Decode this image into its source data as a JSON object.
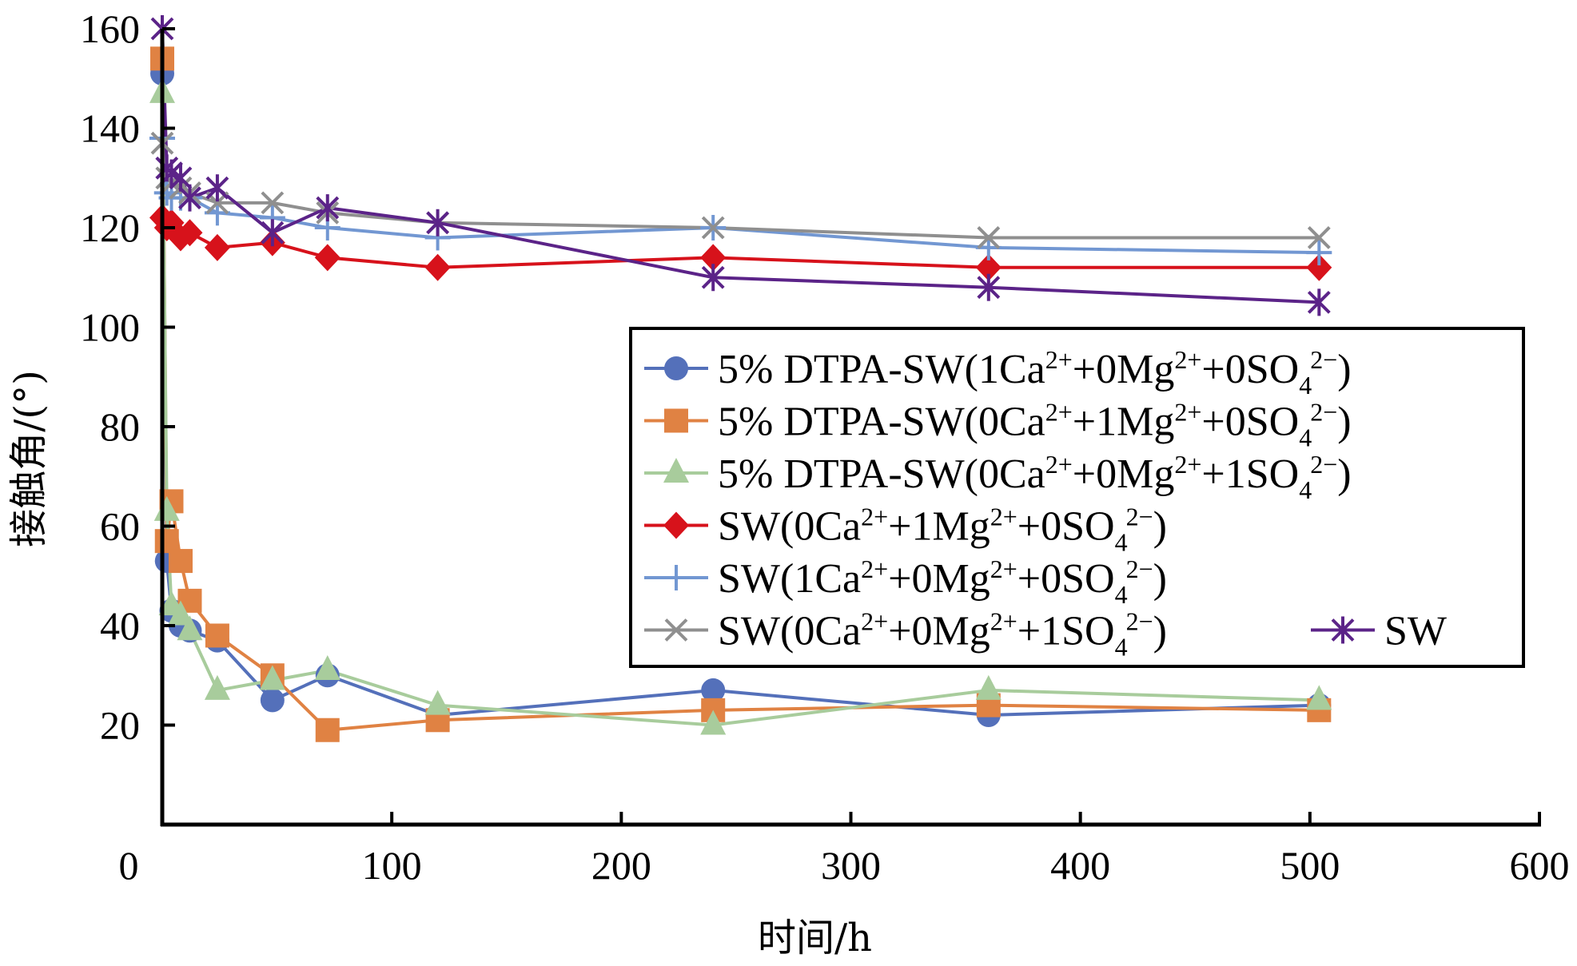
{
  "chart_data": {
    "type": "line",
    "title": "",
    "xlabel": "时间/h",
    "ylabel": "接触角/(°)",
    "xlim": [
      0,
      600
    ],
    "ylim": [
      0,
      160
    ],
    "xticks": [
      0,
      100,
      200,
      300,
      400,
      500,
      600
    ],
    "yticks": [
      20,
      40,
      60,
      80,
      100,
      120,
      140,
      160
    ],
    "grid": false,
    "legend_position": "center-right",
    "x": [
      0,
      2,
      4,
      8,
      12,
      24,
      48,
      72,
      120,
      240,
      360,
      504
    ],
    "series": [
      {
        "name": "5% DTPA-SW(1Ca2++0Mg2++0SO42−)",
        "label_parts": [
          [
            "5% DTPA-SW(1Ca",
            ""
          ],
          [
            "2+",
            "sup"
          ],
          [
            "+0Mg",
            ""
          ],
          [
            "2+",
            "sup"
          ],
          [
            "+0SO",
            ""
          ],
          [
            "4",
            "sub"
          ],
          [
            "2−",
            "sup"
          ],
          [
            ")",
            ""
          ]
        ],
        "marker": "circle",
        "color": "#5470BA",
        "values": [
          151,
          53,
          43,
          40,
          39,
          37,
          25,
          30,
          22,
          27,
          22,
          24
        ]
      },
      {
        "name": "5% DTPA-SW(0Ca2++1Mg2++0SO42−)",
        "label_parts": [
          [
            "5% DTPA-SW(0Ca",
            ""
          ],
          [
            "2+",
            "sup"
          ],
          [
            "+1Mg",
            ""
          ],
          [
            "2+",
            "sup"
          ],
          [
            "+0SO",
            ""
          ],
          [
            "4",
            "sub"
          ],
          [
            "2−",
            "sup"
          ],
          [
            ")",
            ""
          ]
        ],
        "marker": "square",
        "color": "#E08243",
        "values": [
          154,
          57,
          65,
          53,
          45,
          38,
          30,
          19,
          21,
          23,
          24,
          23
        ]
      },
      {
        "name": "5% DTPA-SW(0Ca2++0Mg2++1SO42−)",
        "label_parts": [
          [
            "5% DTPA-SW(0Ca",
            ""
          ],
          [
            "2+",
            "sup"
          ],
          [
            "+0Mg",
            ""
          ],
          [
            "2+",
            "sup"
          ],
          [
            "+1SO",
            ""
          ],
          [
            "4",
            "sub"
          ],
          [
            "2−",
            "sup"
          ],
          [
            ")",
            ""
          ]
        ],
        "marker": "triangle",
        "color": "#A8CC9C",
        "values": [
          147,
          63,
          44,
          42,
          39,
          27,
          29,
          31,
          24,
          20,
          27,
          25
        ]
      },
      {
        "name": "SW(0Ca2++1Mg2++0SO42−)",
        "label_parts": [
          [
            "SW(0Ca",
            ""
          ],
          [
            "2+",
            "sup"
          ],
          [
            "+1Mg",
            ""
          ],
          [
            "2+",
            "sup"
          ],
          [
            "+0SO",
            ""
          ],
          [
            "4",
            "sub"
          ],
          [
            "2−",
            "sup"
          ],
          [
            ")",
            ""
          ]
        ],
        "marker": "diamond",
        "color": "#D7121B",
        "values": [
          122,
          120,
          121,
          118,
          119,
          116,
          117,
          114,
          112,
          114,
          112,
          112
        ]
      },
      {
        "name": "SW(1Ca2++0Mg2++0SO42−)",
        "label_parts": [
          [
            "SW(1Ca",
            ""
          ],
          [
            "2+",
            "sup"
          ],
          [
            "+0Mg",
            ""
          ],
          [
            "2+",
            "sup"
          ],
          [
            "+0SO",
            ""
          ],
          [
            "4",
            "sub"
          ],
          [
            "2−",
            "sup"
          ],
          [
            ")",
            ""
          ]
        ],
        "marker": "plus",
        "color": "#7297D2",
        "values": [
          138,
          127,
          126,
          126,
          126,
          123,
          122,
          120,
          118,
          120,
          116,
          115
        ]
      },
      {
        "name": "SW(0Ca2++0Mg2++1SO42−)",
        "label_parts": [
          [
            "SW(0Ca",
            ""
          ],
          [
            "2+",
            "sup"
          ],
          [
            "+0Mg",
            ""
          ],
          [
            "2+",
            "sup"
          ],
          [
            "+1SO",
            ""
          ],
          [
            "4",
            "sub"
          ],
          [
            "2−",
            "sup"
          ],
          [
            ")",
            ""
          ]
        ],
        "marker": "x",
        "color": "#8F8F8F",
        "values": [
          137,
          130,
          129,
          128,
          127,
          125,
          125,
          123,
          121,
          120,
          118,
          118
        ]
      },
      {
        "name": "SW",
        "label_parts": [
          [
            "SW",
            ""
          ]
        ],
        "marker": "star",
        "color": "#5B2388",
        "values": [
          160,
          132,
          131,
          130,
          126,
          128,
          119,
          124,
          121,
          110,
          108,
          105
        ]
      }
    ]
  }
}
